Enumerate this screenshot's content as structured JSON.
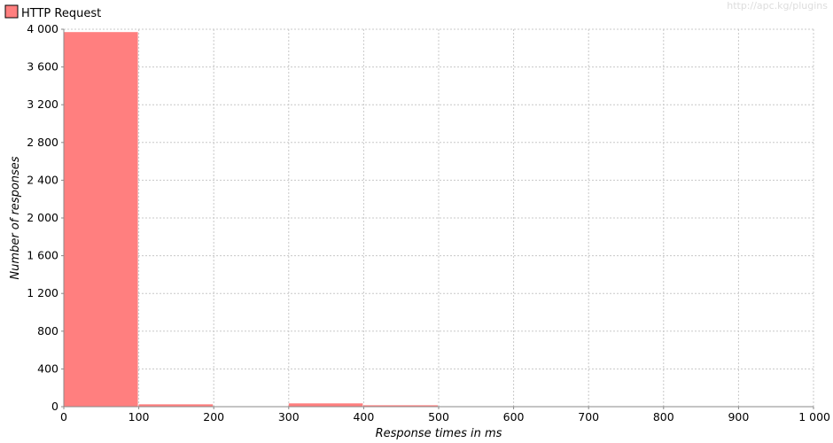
{
  "watermark": "http://apc.kg/plugins",
  "chart_data": {
    "type": "bar",
    "title": "",
    "xlabel": "Response times in ms",
    "ylabel": "Number of responses",
    "xlim": [
      0,
      1000
    ],
    "ylim": [
      0,
      4000
    ],
    "x_ticks": [
      "0",
      "100",
      "200",
      "300",
      "400",
      "500",
      "600",
      "700",
      "800",
      "900",
      "1 000"
    ],
    "x_tick_values": [
      0,
      100,
      200,
      300,
      400,
      500,
      600,
      700,
      800,
      900,
      1000
    ],
    "y_ticks": [
      "0",
      "400",
      "800",
      "1 200",
      "1 600",
      "2 000",
      "2 400",
      "2 800",
      "3 200",
      "3 600",
      "4 000"
    ],
    "y_tick_values": [
      0,
      400,
      800,
      1200,
      1600,
      2000,
      2400,
      2800,
      3200,
      3600,
      4000
    ],
    "grid": true,
    "legend_position": "top-left",
    "series": [
      {
        "name": "HTTP Request",
        "color": "#ff7f7f",
        "bins": [
          {
            "start": 0,
            "end": 100,
            "value": 3970
          },
          {
            "start": 100,
            "end": 200,
            "value": 25
          },
          {
            "start": 300,
            "end": 400,
            "value": 35
          },
          {
            "start": 400,
            "end": 500,
            "value": 15
          }
        ]
      }
    ]
  }
}
